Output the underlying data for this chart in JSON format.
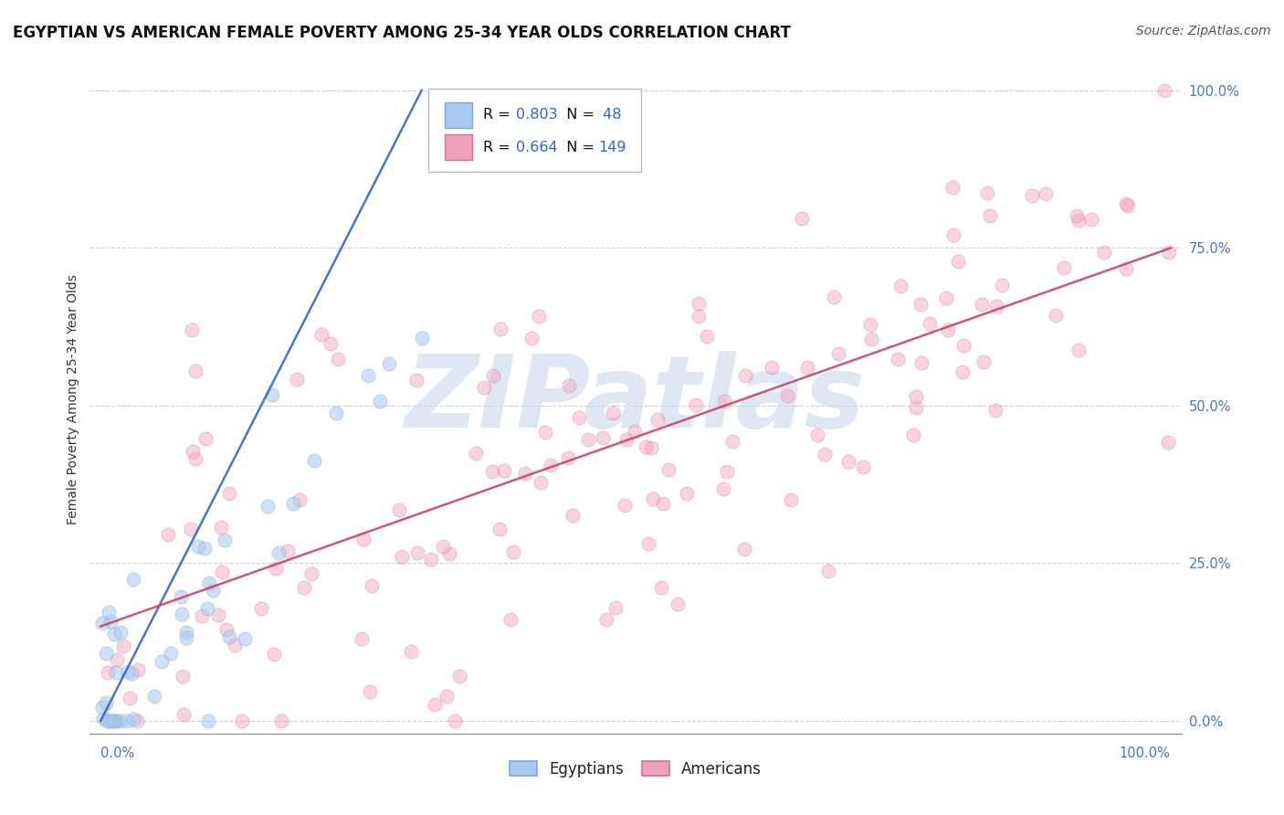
{
  "title": "EGYPTIAN VS AMERICAN FEMALE POVERTY AMONG 25-34 YEAR OLDS CORRELATION CHART",
  "source": "Source: ZipAtlas.com",
  "ylabel": "Female Poverty Among 25-34 Year Olds",
  "yticks_labels": [
    "0.0%",
    "25.0%",
    "50.0%",
    "75.0%",
    "100.0%"
  ],
  "yticks_vals": [
    0,
    25,
    50,
    75,
    100
  ],
  "legend_items": [
    {
      "label": "Egyptians",
      "face_color": "#a8c8f0",
      "edge_color": "#80a8d8",
      "R": 0.803,
      "N": 48
    },
    {
      "label": "Americans",
      "face_color": "#f0a0b8",
      "edge_color": "#d87090",
      "R": 0.664,
      "N": 149
    }
  ],
  "blue_line_color": "#3366cc",
  "pink_line_color": "#cc4466",
  "watermark_color": "#c8d8ea",
  "background_color": "#ffffff",
  "grid_color": "#cccccc",
  "title_fontsize": 12,
  "source_fontsize": 10,
  "ylabel_fontsize": 10,
  "tick_fontsize": 10.5,
  "legend_fontsize": 11.5,
  "dot_size": 120,
  "eg_dot_alpha": 0.55,
  "am_dot_alpha": 0.45,
  "line_width": 1.8
}
